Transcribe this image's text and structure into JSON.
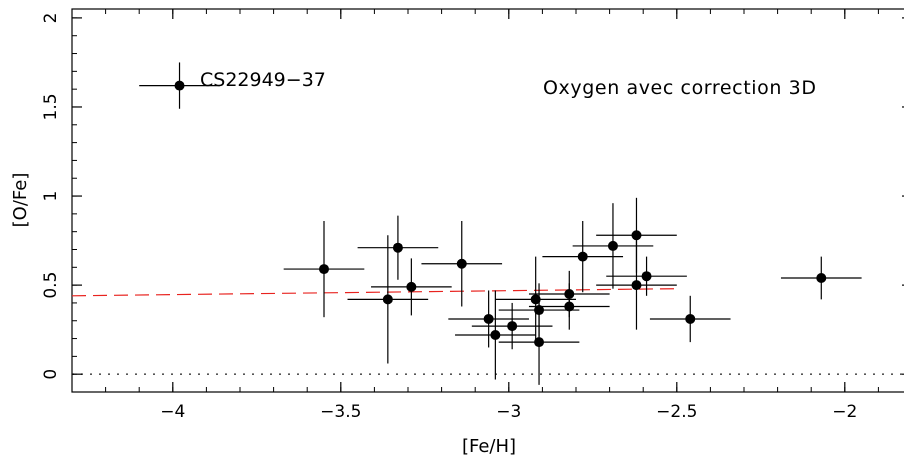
{
  "chart_data": {
    "type": "scatter",
    "xlabel": "[Fe/H]",
    "ylabel": "[O/Fe]",
    "xlim": [
      -4.3,
      -1.8
    ],
    "ylim": [
      -0.1,
      2.05
    ],
    "xticks": [
      -4,
      -3.5,
      -3,
      -2.5,
      -2
    ],
    "xtick_labels": [
      "−4",
      "−3.5",
      "−3",
      "−2.5",
      "−2"
    ],
    "yticks": [
      0,
      0.5,
      1,
      1.5,
      2
    ],
    "ytick_labels": [
      "0",
      "0.5",
      "1",
      "1.5",
      "2"
    ],
    "annotations": {
      "star_label": "CS22949−37",
      "title_text": "Oxygen avec correction 3D"
    },
    "colors": {
      "points": "#000000",
      "fit_line": "#e8231f",
      "zero_line": "#555555"
    },
    "fit_line": {
      "x": [
        -4.3,
        -2.5
      ],
      "y": [
        0.44,
        0.48
      ],
      "style": "dashed"
    },
    "reference_line": {
      "y": 0,
      "style": "dotted"
    },
    "points": [
      {
        "x": -3.98,
        "y": 1.62,
        "xerr": 0.12,
        "yerr": 0.13
      },
      {
        "x": -3.55,
        "y": 0.59,
        "xerr": 0.12,
        "yerr": 0.27
      },
      {
        "x": -3.36,
        "y": 0.42,
        "xerr": 0.12,
        "yerr": 0.36
      },
      {
        "x": -3.33,
        "y": 0.71,
        "xerr": 0.12,
        "yerr": 0.18
      },
      {
        "x": -3.29,
        "y": 0.49,
        "xerr": 0.12,
        "yerr": 0.16
      },
      {
        "x": -3.14,
        "y": 0.62,
        "xerr": 0.12,
        "yerr": 0.24
      },
      {
        "x": -3.06,
        "y": 0.31,
        "xerr": 0.12,
        "yerr": 0.16
      },
      {
        "x": -3.04,
        "y": 0.22,
        "xerr": 0.12,
        "yerr": 0.25
      },
      {
        "x": -2.99,
        "y": 0.27,
        "xerr": 0.12,
        "yerr": 0.13
      },
      {
        "x": -2.92,
        "y": 0.42,
        "xerr": 0.12,
        "yerr": 0.24
      },
      {
        "x": -2.91,
        "y": 0.36,
        "xerr": 0.12,
        "yerr": 0.15
      },
      {
        "x": -2.91,
        "y": 0.18,
        "xerr": 0.12,
        "yerr": 0.24
      },
      {
        "x": -2.82,
        "y": 0.45,
        "xerr": 0.12,
        "yerr": 0.13
      },
      {
        "x": -2.82,
        "y": 0.38,
        "xerr": 0.12,
        "yerr": 0.13
      },
      {
        "x": -2.78,
        "y": 0.66,
        "xerr": 0.12,
        "yerr": 0.2
      },
      {
        "x": -2.69,
        "y": 0.72,
        "xerr": 0.12,
        "yerr": 0.24
      },
      {
        "x": -2.62,
        "y": 0.78,
        "xerr": 0.12,
        "yerr": 0.21
      },
      {
        "x": -2.62,
        "y": 0.5,
        "xerr": 0.12,
        "yerr": 0.25
      },
      {
        "x": -2.59,
        "y": 0.55,
        "xerr": 0.12,
        "yerr": 0.11
      },
      {
        "x": -2.46,
        "y": 0.31,
        "xerr": 0.12,
        "yerr": 0.13
      },
      {
        "x": -2.07,
        "y": 0.54,
        "xerr": 0.12,
        "yerr": 0.12
      }
    ]
  }
}
